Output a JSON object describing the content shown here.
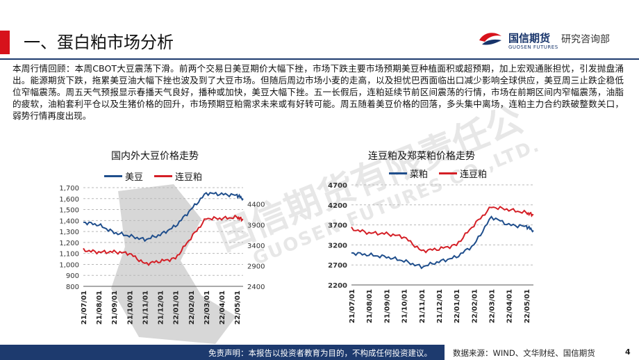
{
  "header": {
    "title": "一、蛋白粕市场分析",
    "brand_cn": "国信期货",
    "brand_en": "GUOSEN FUTURES",
    "department": "研究咨询部"
  },
  "summary": "本周行情回顾：本周CBOT大豆震荡下滑。前两个交易日美豆期价大幅下挫，市场下跌主要市场预期美豆种植面积或超预期，加上宏观通胀担忧，引发抛盘涌出。能源期货下跌，拖累美豆油大幅下挫也波及到了大豆市场。但随后周边市场小麦的走高，以及担忧巴西面临出口减少影响全球供应，美豆周三止跌企稳低位窄幅震荡。周五天气预报显示春播天气良好，播种或加快，美豆大幅下挫。五一长假后，连粕延续节前区间震荡的行情，市场在前期区间内窄幅震荡，油脂的疲软，油粕套利平仓以及生猪价格的回升，市场预期豆粕需求未来或有好转可能。周五随着美豆价格的回落，多头集中离场，连粕主力合约跌破整数关口，弱势行情再度出现。",
  "watermark": {
    "cn": "国信期货有限责任公",
    "en": "GUOSEN FUTURES CO.,LTD."
  },
  "colors": {
    "brand_red": "#d7121b",
    "navy": "#1d3a6e",
    "series_blue": "#1f4e8c",
    "series_red": "#d41f26"
  },
  "footer": {
    "disclaimer": "免责声明：本报告以投资者教育为目的，不构成任何投资建议。",
    "source": "数据来源：WIND、文华财经、国信期货",
    "page": "4"
  },
  "chart_data": [
    {
      "type": "line",
      "title": "国内外大豆价格走势",
      "categories": [
        "21/07/01",
        "21/08/01",
        "21/09/01",
        "21/10/01",
        "21/11/01",
        "21/12/01",
        "22/01/01",
        "22/02/01",
        "22/03/01",
        "22/04/01",
        "22/05/01"
      ],
      "x": [
        0,
        1,
        2,
        3,
        4,
        5,
        6,
        7,
        8,
        9,
        10,
        10.4
      ],
      "y_left": {
        "lim": [
          800,
          1700
        ],
        "ticks": [
          800,
          900,
          "1,000",
          "1,100",
          "1,200",
          "1,300",
          "1,400",
          "1,500",
          "1,600",
          "1,700"
        ]
      },
      "y_right": {
        "lim": [
          2400,
          4800
        ],
        "ticks": [
          2400,
          2900,
          3400,
          3900,
          4400
        ]
      },
      "series": [
        {
          "name": "美豆",
          "axis": "left",
          "color": "#1f4e8c",
          "values": [
            1385,
            1360,
            1290,
            1260,
            1225,
            1270,
            1350,
            1500,
            1650,
            1640,
            1630,
            1600
          ]
        },
        {
          "name": "连豆粕",
          "axis": "right",
          "color": "#d41f26",
          "values": [
            3280,
            3230,
            3240,
            3200,
            2950,
            3010,
            3080,
            3580,
            4050,
            4050,
            4080,
            4020
          ]
        }
      ],
      "grid": true,
      "legend": "top-left"
    },
    {
      "type": "line",
      "title": "连豆粕及郑菜粕价格走势",
      "categories": [
        "21/07/01",
        "21/08/01",
        "21/09/01",
        "21/10/01",
        "21/11/01",
        "21/12/01",
        "22/01/01",
        "22/02/01",
        "22/03/01",
        "22/04/01",
        "22/05/01"
      ],
      "x": [
        0,
        1,
        2,
        3,
        4,
        5,
        6,
        7,
        8,
        9,
        10,
        10.4
      ],
      "y": {
        "lim": [
          2200,
          4700
        ],
        "ticks": [
          2200,
          2700,
          3200,
          3700,
          4200,
          4700
        ]
      },
      "series": [
        {
          "name": "菜粕",
          "color": "#1f4e8c",
          "values": [
            3000,
            2950,
            2900,
            2800,
            2650,
            2780,
            2900,
            3200,
            3900,
            3700,
            3660,
            3560
          ]
        },
        {
          "name": "连豆粕",
          "color": "#d41f26",
          "values": [
            3600,
            3500,
            3480,
            3400,
            3050,
            3100,
            3200,
            3700,
            4150,
            4080,
            4000,
            3950
          ]
        }
      ],
      "grid": true,
      "legend": "top-left"
    }
  ]
}
